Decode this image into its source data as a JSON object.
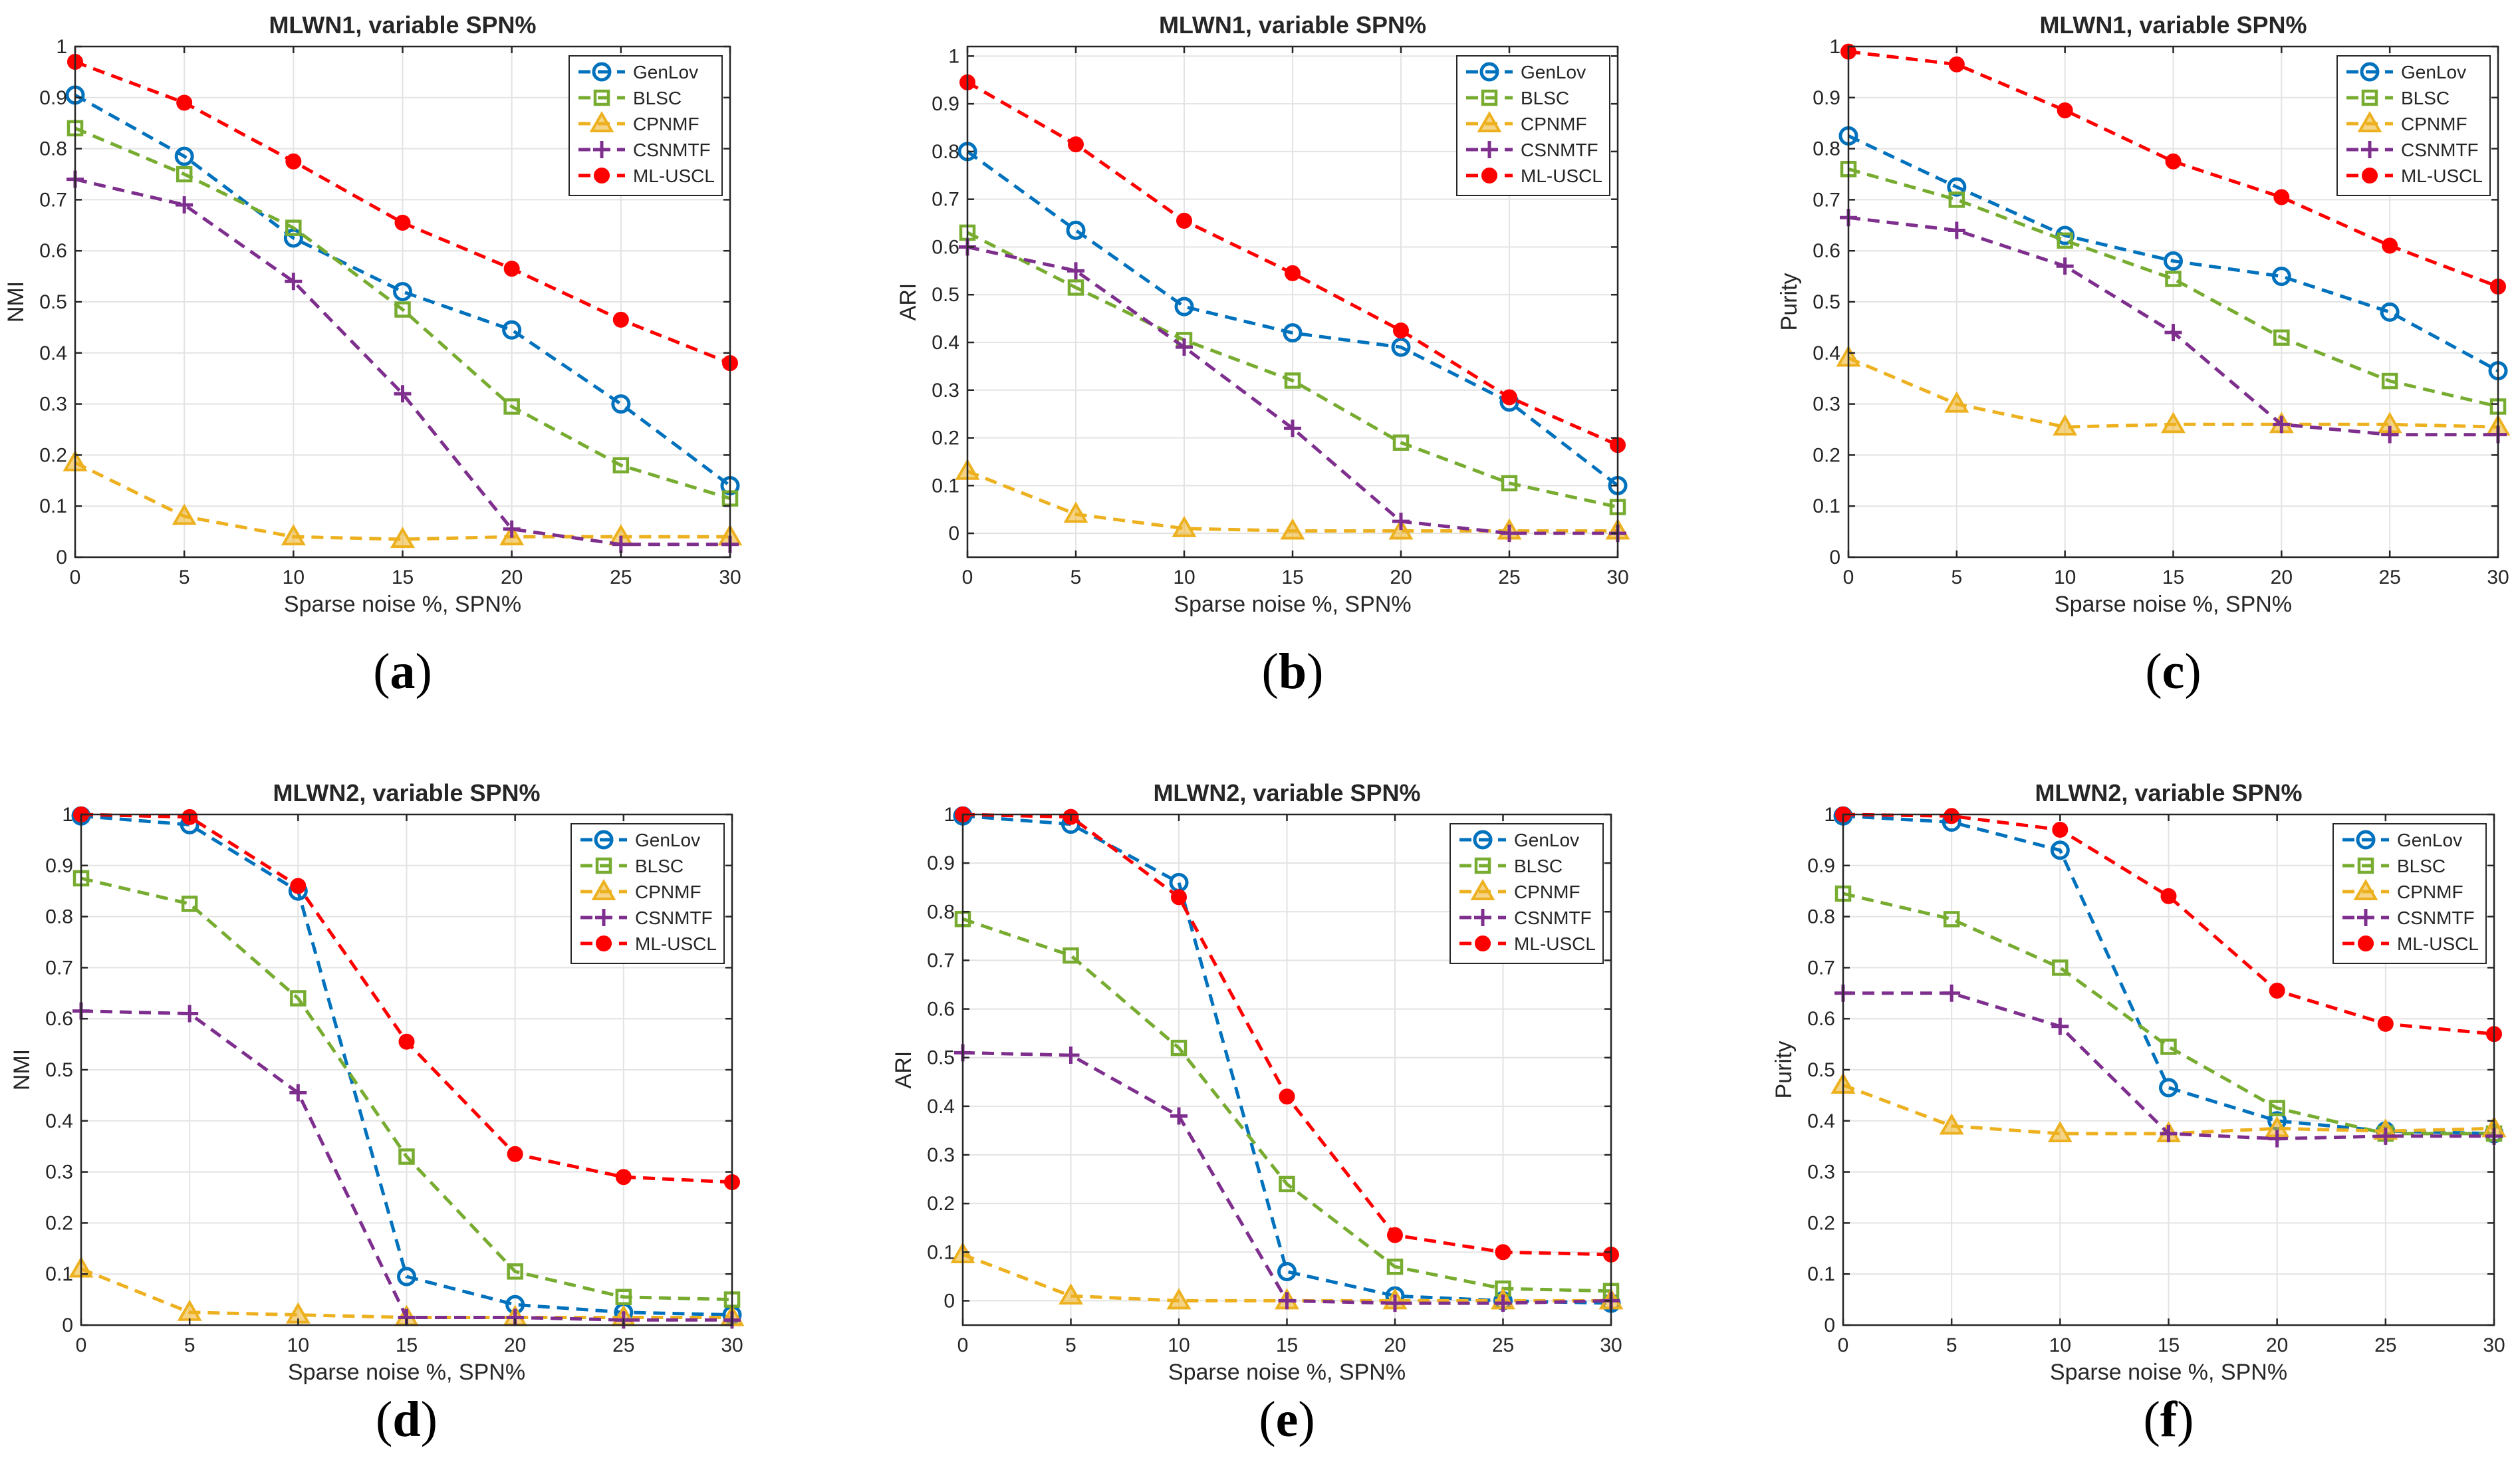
{
  "colors": {
    "GenLov": "#0072BD",
    "BLSC": "#77AC30",
    "CPNMF": "#EDB120",
    "CSNMTF": "#7E2F8E",
    "ML-USCL": "#FF0000"
  },
  "markers": {
    "GenLov": "circle",
    "BLSC": "square",
    "CPNMF": "triangle",
    "CSNMTF": "plus",
    "ML-USCL": "filled-circle"
  },
  "chart_data": [
    {
      "type": "line",
      "caption": "a",
      "title": "MLWN1, variable SPN%",
      "xlabel": "Sparse noise %, SPN%",
      "ylabel": "NMI",
      "x": [
        0,
        5,
        10,
        15,
        20,
        25,
        30
      ],
      "xlim": [
        0,
        30
      ],
      "ylim": [
        0,
        1
      ],
      "xticks": [
        "0",
        "5",
        "10",
        "15",
        "20",
        "25",
        "30"
      ],
      "yticks": [
        "0",
        "0.1",
        "0.2",
        "0.3",
        "0.4",
        "0.5",
        "0.6",
        "0.7",
        "0.8",
        "0.9",
        "1"
      ],
      "grid": true,
      "legend": "top-right",
      "series": [
        {
          "name": "GenLov",
          "values": [
            0.905,
            0.785,
            0.625,
            0.52,
            0.445,
            0.3,
            0.14
          ]
        },
        {
          "name": "BLSC",
          "values": [
            0.84,
            0.75,
            0.645,
            0.485,
            0.295,
            0.18,
            0.115
          ]
        },
        {
          "name": "CPNMF",
          "values": [
            0.185,
            0.08,
            0.04,
            0.035,
            0.04,
            0.04,
            0.04
          ]
        },
        {
          "name": "CSNMTF",
          "values": [
            0.74,
            0.69,
            0.54,
            0.32,
            0.055,
            0.025,
            0.025
          ]
        },
        {
          "name": "ML-USCL",
          "values": [
            0.97,
            0.89,
            0.775,
            0.655,
            0.565,
            0.465,
            0.38
          ]
        }
      ]
    },
    {
      "type": "line",
      "caption": "b",
      "title": "MLWN1, variable SPN%",
      "xlabel": "Sparse noise %, SPN%",
      "ylabel": "ARI",
      "x": [
        0,
        5,
        10,
        15,
        20,
        25,
        30
      ],
      "xlim": [
        0,
        30
      ],
      "ylim": [
        -0.05,
        1.02
      ],
      "xticks": [
        "0",
        "5",
        "10",
        "15",
        "20",
        "25",
        "30"
      ],
      "yticks": [
        "0",
        "0.1",
        "0.2",
        "0.3",
        "0.4",
        "0.5",
        "0.6",
        "0.7",
        "0.8",
        "0.9",
        "1"
      ],
      "grid": true,
      "legend": "top-right",
      "series": [
        {
          "name": "GenLov",
          "values": [
            0.8,
            0.635,
            0.475,
            0.42,
            0.39,
            0.275,
            0.1
          ]
        },
        {
          "name": "BLSC",
          "values": [
            0.63,
            0.515,
            0.405,
            0.32,
            0.19,
            0.105,
            0.055
          ]
        },
        {
          "name": "CPNMF",
          "values": [
            0.13,
            0.04,
            0.01,
            0.005,
            0.005,
            0.005,
            0.005
          ]
        },
        {
          "name": "CSNMTF",
          "values": [
            0.6,
            0.55,
            0.39,
            0.22,
            0.025,
            0.0,
            0.0
          ]
        },
        {
          "name": "ML-USCL",
          "values": [
            0.945,
            0.815,
            0.655,
            0.545,
            0.425,
            0.285,
            0.185
          ]
        }
      ]
    },
    {
      "type": "line",
      "caption": "c",
      "title": "MLWN1, variable SPN%",
      "xlabel": "Sparse noise %, SPN%",
      "ylabel": "Purity",
      "x": [
        0,
        5,
        10,
        15,
        20,
        25,
        30
      ],
      "xlim": [
        0,
        30
      ],
      "ylim": [
        0,
        1
      ],
      "xticks": [
        "0",
        "5",
        "10",
        "15",
        "20",
        "25",
        "30"
      ],
      "yticks": [
        "0",
        "0.1",
        "0.2",
        "0.3",
        "0.4",
        "0.5",
        "0.6",
        "0.7",
        "0.8",
        "0.9",
        "1"
      ],
      "grid": true,
      "legend": "top-right",
      "series": [
        {
          "name": "GenLov",
          "values": [
            0.825,
            0.725,
            0.63,
            0.58,
            0.55,
            0.48,
            0.365
          ]
        },
        {
          "name": "BLSC",
          "values": [
            0.76,
            0.7,
            0.62,
            0.545,
            0.43,
            0.345,
            0.295
          ]
        },
        {
          "name": "CPNMF",
          "values": [
            0.39,
            0.3,
            0.255,
            0.26,
            0.26,
            0.26,
            0.255
          ]
        },
        {
          "name": "CSNMTF",
          "values": [
            0.665,
            0.64,
            0.57,
            0.44,
            0.26,
            0.24,
            0.24
          ]
        },
        {
          "name": "ML-USCL",
          "values": [
            0.99,
            0.965,
            0.875,
            0.775,
            0.705,
            0.61,
            0.53
          ]
        }
      ]
    },
    {
      "type": "line",
      "caption": "d",
      "title": "MLWN2, variable SPN%",
      "xlabel": "Sparse noise %, SPN%",
      "ylabel": "NMI",
      "x": [
        0,
        5,
        10,
        15,
        20,
        25,
        30
      ],
      "xlim": [
        0,
        30
      ],
      "ylim": [
        0,
        1
      ],
      "xticks": [
        "0",
        "5",
        "10",
        "15",
        "20",
        "25",
        "30"
      ],
      "yticks": [
        "0",
        "0.1",
        "0.2",
        "0.3",
        "0.4",
        "0.5",
        "0.6",
        "0.7",
        "0.8",
        "0.9",
        "1"
      ],
      "grid": true,
      "legend": "top-right",
      "series": [
        {
          "name": "GenLov",
          "values": [
            0.997,
            0.98,
            0.85,
            0.095,
            0.04,
            0.025,
            0.02
          ]
        },
        {
          "name": "BLSC",
          "values": [
            0.875,
            0.825,
            0.64,
            0.33,
            0.105,
            0.055,
            0.05
          ]
        },
        {
          "name": "CPNMF",
          "values": [
            0.11,
            0.025,
            0.02,
            0.015,
            0.015,
            0.015,
            0.015
          ]
        },
        {
          "name": "CSNMTF",
          "values": [
            0.615,
            0.61,
            0.455,
            0.015,
            0.015,
            0.01,
            0.01
          ]
        },
        {
          "name": "ML-USCL",
          "values": [
            1.0,
            0.995,
            0.86,
            0.555,
            0.335,
            0.29,
            0.28
          ]
        }
      ]
    },
    {
      "type": "line",
      "caption": "e",
      "title": "MLWN2, variable SPN%",
      "xlabel": "Sparse noise %, SPN%",
      "ylabel": "ARI",
      "x": [
        0,
        5,
        10,
        15,
        20,
        25,
        30
      ],
      "xlim": [
        0,
        30
      ],
      "ylim": [
        -0.05,
        1.0
      ],
      "xticks": [
        "0",
        "5",
        "10",
        "15",
        "20",
        "25",
        "30"
      ],
      "yticks": [
        "0",
        "0.1",
        "0.2",
        "0.3",
        "0.4",
        "0.5",
        "0.6",
        "0.7",
        "0.8",
        "0.9",
        "1"
      ],
      "grid": true,
      "legend": "top-right",
      "series": [
        {
          "name": "GenLov",
          "values": [
            0.997,
            0.98,
            0.86,
            0.06,
            0.01,
            0.0,
            -0.005
          ]
        },
        {
          "name": "BLSC",
          "values": [
            0.785,
            0.71,
            0.52,
            0.24,
            0.07,
            0.025,
            0.02
          ]
        },
        {
          "name": "CPNMF",
          "values": [
            0.095,
            0.01,
            0.0,
            0.0,
            0.0,
            0.0,
            0.0
          ]
        },
        {
          "name": "CSNMTF",
          "values": [
            0.51,
            0.505,
            0.38,
            0.0,
            -0.005,
            -0.005,
            0.0
          ]
        },
        {
          "name": "ML-USCL",
          "values": [
            1.0,
            0.995,
            0.83,
            0.42,
            0.135,
            0.1,
            0.095
          ]
        }
      ]
    },
    {
      "type": "line",
      "caption": "f",
      "title": "MLWN2, variable SPN%",
      "xlabel": "Sparse noise %, SPN%",
      "ylabel": "Purity",
      "x": [
        0,
        5,
        10,
        15,
        20,
        25,
        30
      ],
      "xlim": [
        0,
        30
      ],
      "ylim": [
        0,
        1
      ],
      "xticks": [
        "0",
        "5",
        "10",
        "15",
        "20",
        "25",
        "30"
      ],
      "yticks": [
        "0",
        "0.1",
        "0.2",
        "0.3",
        "0.4",
        "0.5",
        "0.6",
        "0.7",
        "0.8",
        "0.9",
        "1"
      ],
      "grid": true,
      "legend": "top-right",
      "series": [
        {
          "name": "GenLov",
          "values": [
            0.997,
            0.985,
            0.93,
            0.465,
            0.4,
            0.38,
            0.375
          ]
        },
        {
          "name": "BLSC",
          "values": [
            0.845,
            0.795,
            0.7,
            0.545,
            0.425,
            0.375,
            0.375
          ]
        },
        {
          "name": "CPNMF",
          "values": [
            0.47,
            0.39,
            0.375,
            0.375,
            0.385,
            0.38,
            0.385
          ]
        },
        {
          "name": "CSNMTF",
          "values": [
            0.65,
            0.65,
            0.585,
            0.375,
            0.365,
            0.37,
            0.37
          ]
        },
        {
          "name": "ML-USCL",
          "values": [
            1.0,
            0.997,
            0.97,
            0.84,
            0.655,
            0.59,
            0.57
          ]
        }
      ]
    }
  ]
}
